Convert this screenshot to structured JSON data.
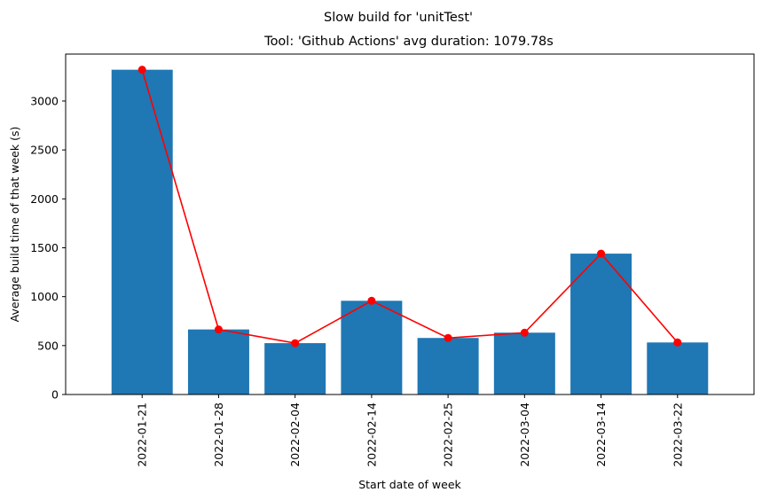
{
  "chart_data": {
    "type": "bar",
    "suptitle": "Slow build for 'unitTest'",
    "title": "Tool: 'Github Actions' avg duration: 1079.78s",
    "xlabel": "Start date of week",
    "ylabel": "Average build time of that week (s)",
    "categories": [
      "2022-01-21",
      "2022-01-28",
      "2022-02-04",
      "2022-02-14",
      "2022-02-25",
      "2022-03-04",
      "2022-03-14",
      "2022-03-22"
    ],
    "values": [
      3320,
      665,
      525,
      958,
      578,
      632,
      1440,
      532
    ],
    "overlay_line": {
      "type": "line",
      "values": [
        3320,
        665,
        525,
        958,
        578,
        632,
        1440,
        532
      ],
      "color": "#ff0000",
      "marker": "circle"
    },
    "ylim": [
      0,
      3480
    ],
    "yticks": [
      0,
      500,
      1000,
      1500,
      2000,
      2500,
      3000
    ],
    "bar_color": "#1f77b4",
    "grid": false,
    "legend": "none"
  }
}
